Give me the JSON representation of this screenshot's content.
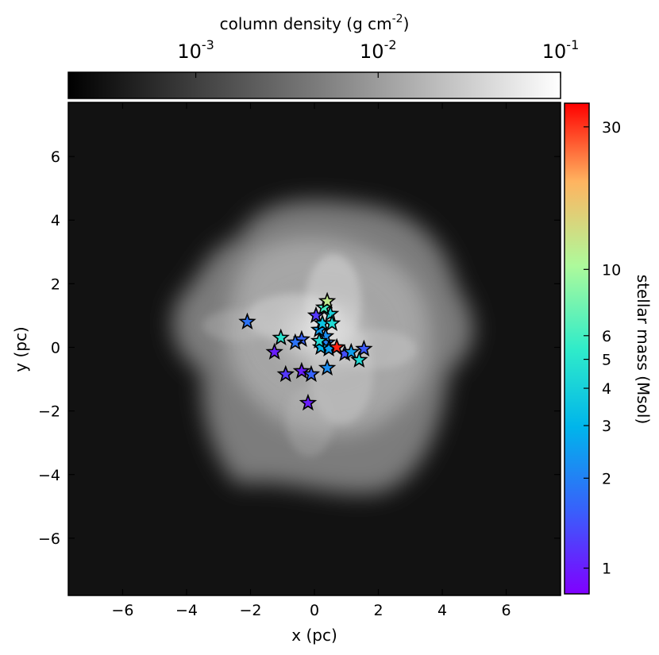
{
  "chart_data": {
    "type": "scatter",
    "title": "",
    "xlabel": "x (pc)",
    "ylabel": "y (pc)",
    "xlim": [
      -7.7,
      7.7
    ],
    "ylim": [
      -7.8,
      7.7
    ],
    "x_ticks": [
      -6,
      -4,
      -2,
      0,
      2,
      4,
      6
    ],
    "y_ticks": [
      -6,
      -4,
      -2,
      0,
      2,
      4,
      6
    ],
    "x_tick_labels": [
      "−6",
      "−4",
      "−2",
      "0",
      "2",
      "4",
      "6"
    ],
    "y_tick_labels": [
      "−6",
      "−4",
      "−2",
      "0",
      "2",
      "4",
      "6"
    ],
    "grid": false,
    "background_image": "gas column density map",
    "density_colorbar": {
      "label": "column density (g cm",
      "label_exponent": "-2",
      "label_close": ")",
      "scale": "log",
      "range": [
        0.0002,
        0.1
      ],
      "colormap": "gray",
      "position": "top",
      "ticks": [
        {
          "value": 0.001,
          "base": "10",
          "exp": "-3"
        },
        {
          "value": 0.01,
          "base": "10",
          "exp": "-2"
        },
        {
          "value": 0.1,
          "base": "10",
          "exp": "-1"
        }
      ]
    },
    "mass_colorbar": {
      "label": "stellar mass (Msol)",
      "scale": "log",
      "range": [
        0.82,
        36
      ],
      "colormap": "rainbow",
      "position": "right",
      "ticks": [
        1,
        2,
        3,
        4,
        5,
        6,
        10,
        30
      ],
      "tick_labels": [
        "1",
        "2",
        "3",
        "4",
        "5",
        "6",
        "10",
        "30"
      ]
    },
    "series": [
      {
        "marker": "star",
        "points": [
          {
            "x": 0.7,
            "y": 0.0,
            "mass": 32
          },
          {
            "x": 0.4,
            "y": 1.45,
            "mass": 12
          },
          {
            "x": 0.3,
            "y": 1.25,
            "mass": 6
          },
          {
            "x": 0.5,
            "y": 1.05,
            "mass": 4
          },
          {
            "x": 0.05,
            "y": 1.0,
            "mass": 1.2
          },
          {
            "x": 0.55,
            "y": 0.75,
            "mass": 4.5
          },
          {
            "x": 0.25,
            "y": 0.75,
            "mass": 3.5
          },
          {
            "x": 0.15,
            "y": 0.55,
            "mass": 2.5
          },
          {
            "x": 0.35,
            "y": 0.35,
            "mass": 2.2
          },
          {
            "x": 0.15,
            "y": 0.2,
            "mass": 4.5
          },
          {
            "x": 0.4,
            "y": 0.15,
            "mass": 2
          },
          {
            "x": 0.2,
            "y": 0.0,
            "mass": 3
          },
          {
            "x": 0.45,
            "y": -0.05,
            "mass": 2.5
          },
          {
            "x": 0.95,
            "y": -0.2,
            "mass": 1.4
          },
          {
            "x": 1.15,
            "y": -0.15,
            "mass": 2.5
          },
          {
            "x": 1.4,
            "y": -0.4,
            "mass": 4.5
          },
          {
            "x": 1.55,
            "y": -0.05,
            "mass": 1.5
          },
          {
            "x": 0.4,
            "y": -0.65,
            "mass": 2.2
          },
          {
            "x": -2.1,
            "y": 0.8,
            "mass": 1.8
          },
          {
            "x": -1.05,
            "y": 0.3,
            "mass": 5
          },
          {
            "x": -1.25,
            "y": -0.15,
            "mass": 1.0
          },
          {
            "x": -0.6,
            "y": 0.15,
            "mass": 1.8
          },
          {
            "x": -0.4,
            "y": 0.25,
            "mass": 1.6
          },
          {
            "x": -0.9,
            "y": -0.85,
            "mass": 1.2
          },
          {
            "x": -0.4,
            "y": -0.75,
            "mass": 1.0
          },
          {
            "x": -0.1,
            "y": -0.85,
            "mass": 1.6
          },
          {
            "x": -0.2,
            "y": -1.75,
            "mass": 1.0
          }
        ]
      }
    ]
  }
}
